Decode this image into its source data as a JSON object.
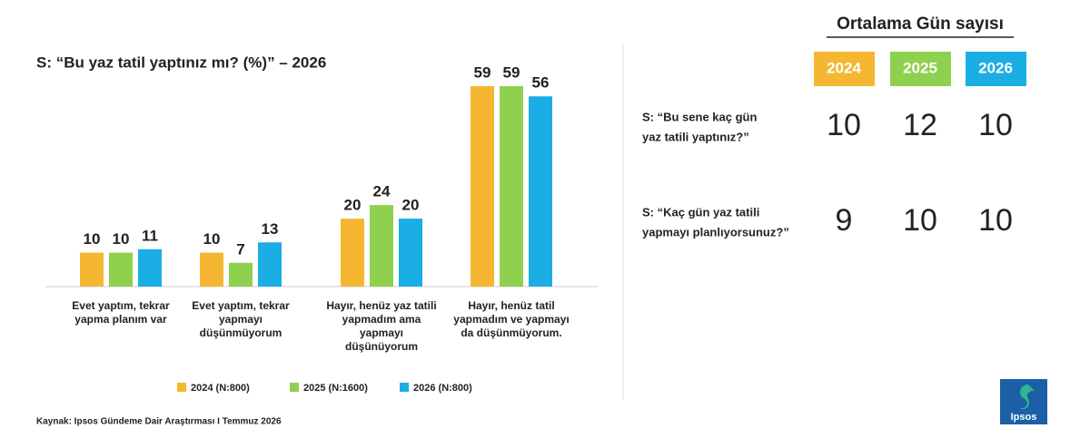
{
  "chart_data": {
    "type": "bar",
    "title": "S: “Bu yaz tatil yaptınız mı? (%)” – 2026",
    "categories": [
      [
        "Evet yaptım, tekrar",
        "yapma planım var"
      ],
      [
        "Evet yaptım, tekrar",
        "yapmayı",
        "düşünmüyorum"
      ],
      [
        "Hayır, henüz yaz tatili",
        "yapmadım ama",
        "yapmayı",
        "düşünüyorum"
      ],
      [
        "Hayır, henüz tatil",
        "yapmadım ve yapmayı",
        "da düşünmüyorum."
      ]
    ],
    "series": [
      {
        "name": "2024 (N:800)",
        "color": "#f5b731",
        "values": [
          10,
          10,
          20,
          59
        ]
      },
      {
        "name": "2025 (N:1600)",
        "color": "#8fd14f",
        "values": [
          10,
          7,
          24,
          59
        ]
      },
      {
        "name": "2026 (N:800)",
        "color": "#1aaee4",
        "values": [
          11,
          13,
          20,
          56
        ]
      }
    ]
  },
  "table": {
    "title": "Ortalama Gün sayısı",
    "columns": [
      {
        "label": "2024",
        "color": "#f5b731"
      },
      {
        "label": "2025",
        "color": "#8fd14f"
      },
      {
        "label": "2026",
        "color": "#1aaee4"
      }
    ],
    "rows": [
      {
        "label": [
          "S: “Bu sene kaç gün",
          "yaz tatili yaptınız?”"
        ],
        "values": [
          10,
          12,
          10
        ]
      },
      {
        "label": [
          "S: “Kaç gün yaz tatili",
          "yapmayı planlıyorsunuz?”"
        ],
        "values": [
          9,
          10,
          10
        ]
      }
    ]
  },
  "source": "Kaynak: Ipsos Gündeme Dair Araştırması I Temmuz 2026",
  "logo": "Ipsos"
}
